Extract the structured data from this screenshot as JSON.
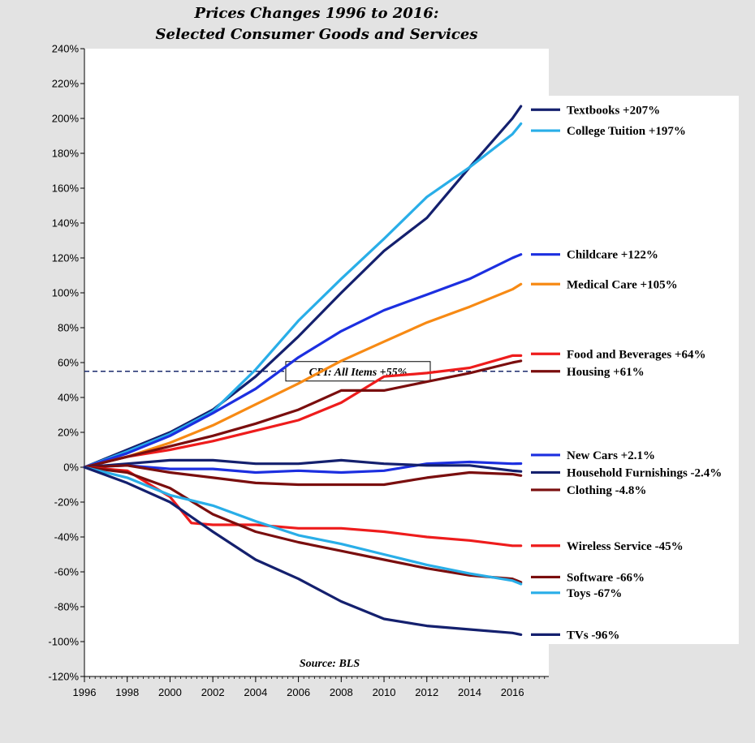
{
  "chart_data": {
    "type": "line",
    "title": [
      "Prices Changes 1996 to 2016:",
      "Selected Consumer Goods and Services"
    ],
    "source_note": "Source: BLS",
    "x_range": [
      1996,
      2017.7
    ],
    "ylim": [
      -120,
      240
    ],
    "x_ticks": [
      1996,
      1998,
      2000,
      2002,
      2004,
      2006,
      2008,
      2010,
      2012,
      2014,
      2016
    ],
    "y_ticks": [
      -120,
      -100,
      -80,
      -60,
      -40,
      -20,
      0,
      20,
      40,
      60,
      80,
      100,
      120,
      140,
      160,
      180,
      200,
      220,
      240
    ],
    "y_tick_labels": [
      "-120%",
      "-100%",
      "-80%",
      "-60%",
      "-40%",
      "-20%",
      "0%",
      "20%",
      "40%",
      "60%",
      "80%",
      "100%",
      "120%",
      "140%",
      "160%",
      "180%",
      "200%",
      "220%",
      "240%"
    ],
    "reference_line": {
      "value": 55,
      "label": "CPI: All Items +55%",
      "color": "#1a2a6c",
      "style": "dashed"
    },
    "series": [
      {
        "name": "Textbooks +207%",
        "color": "#14206e",
        "legend_y": 205,
        "points": [
          [
            1996,
            0
          ],
          [
            1998,
            10
          ],
          [
            2000,
            20
          ],
          [
            2002,
            33
          ],
          [
            2004,
            52
          ],
          [
            2006,
            75
          ],
          [
            2008,
            100
          ],
          [
            2010,
            124
          ],
          [
            2012,
            143
          ],
          [
            2014,
            172
          ],
          [
            2016,
            200
          ],
          [
            2016.4,
            207
          ]
        ]
      },
      {
        "name": "College Tuition +197%",
        "color": "#29aee8",
        "legend_y": 193,
        "points": [
          [
            1996,
            0
          ],
          [
            1998,
            9
          ],
          [
            2000,
            19
          ],
          [
            2002,
            32
          ],
          [
            2004,
            56
          ],
          [
            2006,
            84
          ],
          [
            2008,
            108
          ],
          [
            2010,
            131
          ],
          [
            2012,
            155
          ],
          [
            2014,
            172
          ],
          [
            2016,
            191
          ],
          [
            2016.4,
            197
          ]
        ]
      },
      {
        "name": "Childcare +122%",
        "color": "#1c2fe0",
        "legend_y": 122,
        "points": [
          [
            1996,
            0
          ],
          [
            1998,
            8
          ],
          [
            2000,
            18
          ],
          [
            2002,
            31
          ],
          [
            2004,
            45
          ],
          [
            2006,
            63
          ],
          [
            2008,
            78
          ],
          [
            2010,
            90
          ],
          [
            2012,
            99
          ],
          [
            2014,
            108
          ],
          [
            2016,
            120
          ],
          [
            2016.4,
            122
          ]
        ]
      },
      {
        "name": "Medical Care +105%",
        "color": "#f78a14",
        "legend_y": 105,
        "points": [
          [
            1996,
            0
          ],
          [
            1998,
            6
          ],
          [
            2000,
            14
          ],
          [
            2002,
            24
          ],
          [
            2004,
            36
          ],
          [
            2006,
            48
          ],
          [
            2008,
            61
          ],
          [
            2010,
            72
          ],
          [
            2012,
            83
          ],
          [
            2014,
            92
          ],
          [
            2016,
            102
          ],
          [
            2016.4,
            105
          ]
        ]
      },
      {
        "name": "Food and Beverages +64%",
        "color": "#ee1c1c",
        "legend_y": 65,
        "points": [
          [
            1996,
            0
          ],
          [
            1998,
            6
          ],
          [
            2000,
            10
          ],
          [
            2002,
            15
          ],
          [
            2004,
            21
          ],
          [
            2006,
            27
          ],
          [
            2008,
            37
          ],
          [
            2010,
            52
          ],
          [
            2012,
            54
          ],
          [
            2014,
            57
          ],
          [
            2016,
            64
          ],
          [
            2016.4,
            64
          ]
        ]
      },
      {
        "name": "Housing +61%",
        "color": "#7a0e0e",
        "legend_y": 55,
        "points": [
          [
            1996,
            0
          ],
          [
            1998,
            6
          ],
          [
            2000,
            12
          ],
          [
            2002,
            18
          ],
          [
            2004,
            25
          ],
          [
            2006,
            33
          ],
          [
            2008,
            44
          ],
          [
            2010,
            44
          ],
          [
            2012,
            49
          ],
          [
            2014,
            54
          ],
          [
            2016,
            60
          ],
          [
            2016.4,
            61
          ]
        ]
      },
      {
        "name": "New Cars +2.1%",
        "color": "#1c2fe0",
        "legend_y": 7,
        "points": [
          [
            1996,
            0
          ],
          [
            1998,
            1
          ],
          [
            2000,
            -1
          ],
          [
            2002,
            -1
          ],
          [
            2004,
            -3
          ],
          [
            2006,
            -2
          ],
          [
            2008,
            -3
          ],
          [
            2010,
            -2
          ],
          [
            2012,
            2
          ],
          [
            2014,
            3
          ],
          [
            2016,
            2
          ],
          [
            2016.4,
            2.1
          ]
        ]
      },
      {
        "name": "Household Furnishings -2.4%",
        "color": "#14206e",
        "legend_y": -3,
        "points": [
          [
            1996,
            0
          ],
          [
            1998,
            2
          ],
          [
            2000,
            4
          ],
          [
            2002,
            4
          ],
          [
            2004,
            2
          ],
          [
            2006,
            2
          ],
          [
            2008,
            4
          ],
          [
            2010,
            2
          ],
          [
            2012,
            1
          ],
          [
            2014,
            1
          ],
          [
            2016,
            -2
          ],
          [
            2016.4,
            -2.4
          ]
        ]
      },
      {
        "name": "Clothing -4.8%",
        "color": "#7a0e0e",
        "legend_y": -13,
        "points": [
          [
            1996,
            0
          ],
          [
            1998,
            1
          ],
          [
            2000,
            -3
          ],
          [
            2002,
            -6
          ],
          [
            2004,
            -9
          ],
          [
            2006,
            -10
          ],
          [
            2008,
            -10
          ],
          [
            2010,
            -10
          ],
          [
            2012,
            -6
          ],
          [
            2014,
            -3
          ],
          [
            2016,
            -4
          ],
          [
            2016.4,
            -4.8
          ]
        ]
      },
      {
        "name": "Wireless Service -45%",
        "color": "#ee1c1c",
        "legend_y": -45,
        "points": [
          [
            1996,
            0
          ],
          [
            1998,
            -2
          ],
          [
            2000,
            -17
          ],
          [
            2001,
            -32
          ],
          [
            2002,
            -33
          ],
          [
            2004,
            -33
          ],
          [
            2006,
            -35
          ],
          [
            2008,
            -35
          ],
          [
            2010,
            -37
          ],
          [
            2012,
            -40
          ],
          [
            2014,
            -42
          ],
          [
            2016,
            -45
          ],
          [
            2016.4,
            -45
          ]
        ]
      },
      {
        "name": "Software -66%",
        "color": "#7a0e0e",
        "legend_y": -63,
        "points": [
          [
            1996,
            0
          ],
          [
            1998,
            -3
          ],
          [
            2000,
            -12
          ],
          [
            2002,
            -27
          ],
          [
            2004,
            -37
          ],
          [
            2006,
            -43
          ],
          [
            2008,
            -48
          ],
          [
            2010,
            -53
          ],
          [
            2012,
            -58
          ],
          [
            2014,
            -62
          ],
          [
            2016,
            -64
          ],
          [
            2016.4,
            -66
          ]
        ]
      },
      {
        "name": "Toys -67%",
        "color": "#29aee8",
        "legend_y": -72,
        "points": [
          [
            1996,
            0
          ],
          [
            1998,
            -6
          ],
          [
            2000,
            -16
          ],
          [
            2002,
            -22
          ],
          [
            2004,
            -31
          ],
          [
            2006,
            -39
          ],
          [
            2008,
            -44
          ],
          [
            2010,
            -50
          ],
          [
            2012,
            -56
          ],
          [
            2014,
            -61
          ],
          [
            2016,
            -65
          ],
          [
            2016.4,
            -67
          ]
        ]
      },
      {
        "name": "TVs -96%",
        "color": "#14206e",
        "legend_y": -96,
        "points": [
          [
            1996,
            0
          ],
          [
            1998,
            -9
          ],
          [
            2000,
            -20
          ],
          [
            2002,
            -37
          ],
          [
            2004,
            -53
          ],
          [
            2006,
            -64
          ],
          [
            2008,
            -77
          ],
          [
            2010,
            -87
          ],
          [
            2012,
            -91
          ],
          [
            2014,
            -93
          ],
          [
            2016,
            -95
          ],
          [
            2016.4,
            -96
          ]
        ]
      }
    ]
  }
}
